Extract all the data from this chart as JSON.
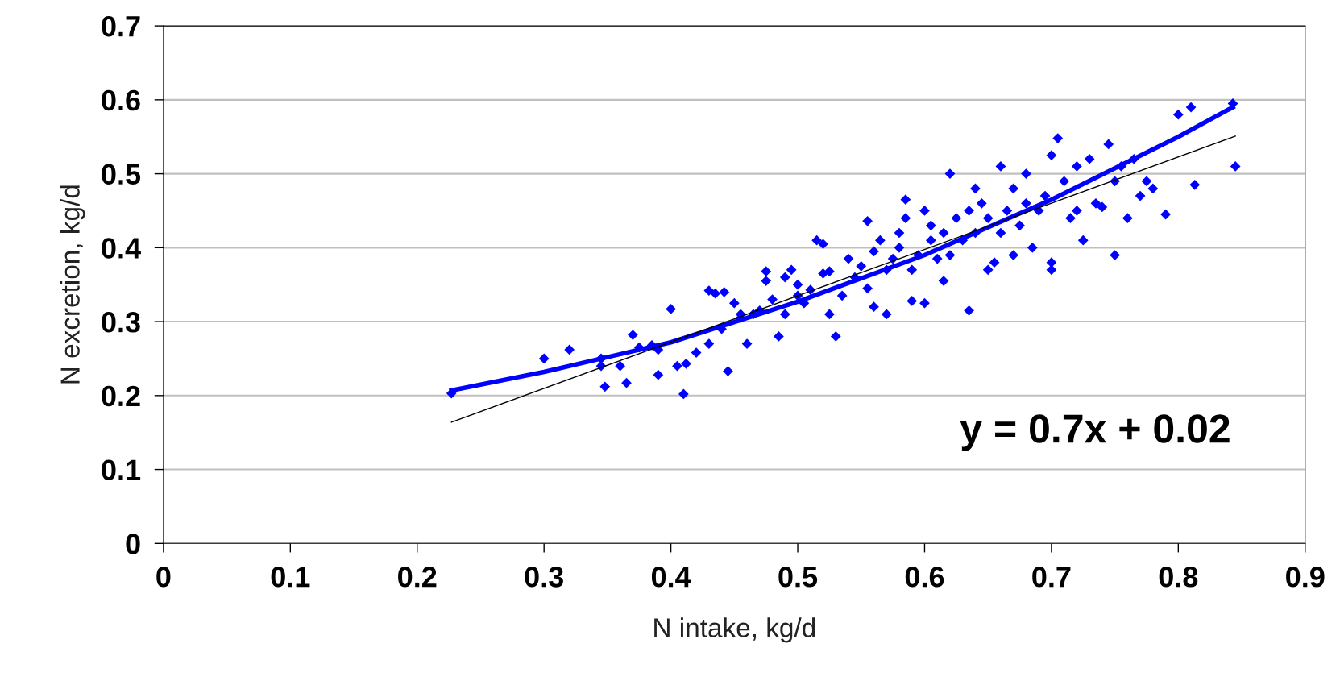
{
  "chart_data": {
    "type": "scatter",
    "xlabel": "N intake, kg/d",
    "ylabel": "N excretion, kg/d",
    "annotations": [
      "y = 0.7x + 0.02"
    ],
    "xlim": [
      0,
      0.9
    ],
    "xticks": [
      0,
      0.1,
      0.2,
      0.3,
      0.4,
      0.5,
      0.6,
      0.7,
      0.8,
      0.9
    ],
    "ylim": [
      0,
      0.7
    ],
    "yticks": [
      0,
      0.1,
      0.2,
      0.3,
      0.4,
      0.5,
      0.6,
      0.7
    ],
    "grid": "y",
    "legend": false,
    "marker": "diamond",
    "series": [
      {
        "color": "#0000ff",
        "x": [
          0.227,
          0.3,
          0.32,
          0.345,
          0.345,
          0.348,
          0.36,
          0.365,
          0.37,
          0.375,
          0.385,
          0.39,
          0.39,
          0.4,
          0.405,
          0.41,
          0.412,
          0.42,
          0.43,
          0.43,
          0.435,
          0.44,
          0.442,
          0.445,
          0.45,
          0.455,
          0.455,
          0.46,
          0.465,
          0.47,
          0.475,
          0.475,
          0.48,
          0.485,
          0.49,
          0.49,
          0.495,
          0.5,
          0.5,
          0.505,
          0.51,
          0.515,
          0.52,
          0.52,
          0.525,
          0.525,
          0.53,
          0.535,
          0.54,
          0.545,
          0.55,
          0.555,
          0.555,
          0.56,
          0.56,
          0.565,
          0.57,
          0.57,
          0.575,
          0.58,
          0.58,
          0.585,
          0.585,
          0.59,
          0.59,
          0.595,
          0.6,
          0.6,
          0.605,
          0.605,
          0.61,
          0.615,
          0.615,
          0.62,
          0.62,
          0.625,
          0.63,
          0.635,
          0.635,
          0.64,
          0.64,
          0.645,
          0.65,
          0.65,
          0.655,
          0.66,
          0.66,
          0.665,
          0.67,
          0.67,
          0.675,
          0.68,
          0.68,
          0.685,
          0.69,
          0.695,
          0.7,
          0.7,
          0.7,
          0.705,
          0.71,
          0.715,
          0.72,
          0.72,
          0.725,
          0.73,
          0.735,
          0.74,
          0.745,
          0.75,
          0.75,
          0.755,
          0.76,
          0.765,
          0.77,
          0.775,
          0.78,
          0.79,
          0.8,
          0.81,
          0.813,
          0.843,
          0.845
        ],
        "values": [
          0.203,
          0.25,
          0.262,
          0.24,
          0.25,
          0.212,
          0.24,
          0.217,
          0.282,
          0.265,
          0.268,
          0.228,
          0.262,
          0.317,
          0.24,
          0.202,
          0.243,
          0.258,
          0.342,
          0.27,
          0.338,
          0.29,
          0.34,
          0.233,
          0.325,
          0.31,
          0.305,
          0.27,
          0.31,
          0.315,
          0.355,
          0.368,
          0.33,
          0.28,
          0.36,
          0.31,
          0.37,
          0.35,
          0.335,
          0.325,
          0.343,
          0.41,
          0.405,
          0.365,
          0.31,
          0.368,
          0.28,
          0.335,
          0.385,
          0.36,
          0.375,
          0.436,
          0.345,
          0.32,
          0.395,
          0.41,
          0.37,
          0.31,
          0.385,
          0.4,
          0.42,
          0.465,
          0.44,
          0.37,
          0.328,
          0.39,
          0.45,
          0.325,
          0.41,
          0.43,
          0.385,
          0.355,
          0.42,
          0.5,
          0.39,
          0.44,
          0.41,
          0.315,
          0.45,
          0.48,
          0.42,
          0.46,
          0.37,
          0.44,
          0.38,
          0.51,
          0.42,
          0.45,
          0.39,
          0.48,
          0.43,
          0.5,
          0.46,
          0.4,
          0.45,
          0.47,
          0.38,
          0.37,
          0.525,
          0.548,
          0.49,
          0.44,
          0.51,
          0.45,
          0.41,
          0.52,
          0.46,
          0.455,
          0.54,
          0.39,
          0.49,
          0.51,
          0.44,
          0.52,
          0.47,
          0.49,
          0.48,
          0.445,
          0.58,
          0.59,
          0.485,
          0.595,
          0.51
        ]
      },
      {
        "type": "line",
        "color": "#0000ff",
        "marker": "none",
        "line_style": "solid",
        "x": [
          0.227,
          0.3,
          0.4,
          0.5,
          0.6,
          0.7,
          0.8,
          0.843
        ],
        "values": [
          0.207,
          0.232,
          0.272,
          0.327,
          0.39,
          0.465,
          0.55,
          0.59
        ]
      },
      {
        "type": "line",
        "color": "#000000",
        "marker": "none",
        "line_style": "solid",
        "x": [
          0.227,
          0.845
        ],
        "values": [
          0.164,
          0.551
        ]
      }
    ]
  }
}
